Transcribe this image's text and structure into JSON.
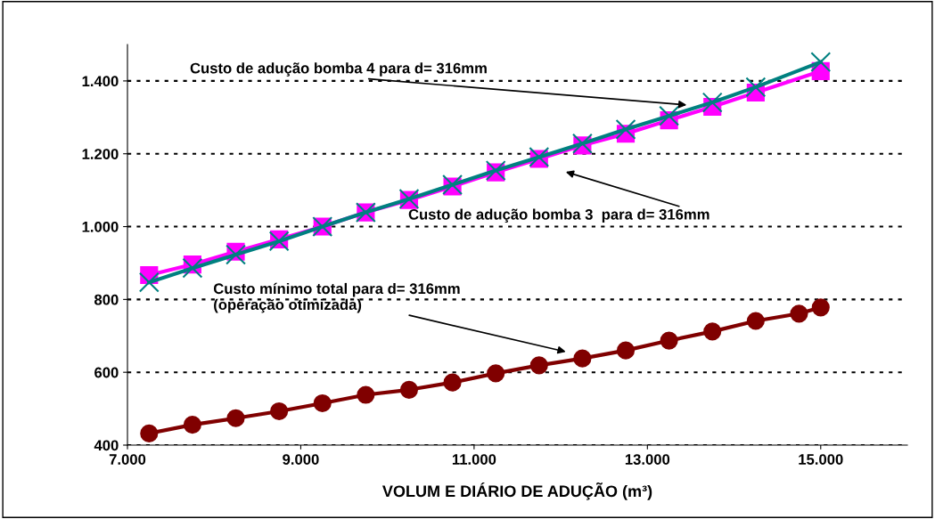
{
  "chart_data": {
    "type": "line",
    "xlabel": "VOLUM E DIÁRIO DE ADUÇÃO (m³)",
    "xlim": [
      7000,
      16000
    ],
    "xticks": [
      {
        "value": 7000,
        "label": "7.000"
      },
      {
        "value": 9000,
        "label": "9.000"
      },
      {
        "value": 11000,
        "label": "11.000"
      },
      {
        "value": 13000,
        "label": "13.000"
      },
      {
        "value": 15000,
        "label": "15.000"
      }
    ],
    "ylim": [
      400,
      1500
    ],
    "yticks": [
      {
        "value": 400,
        "label": "400"
      },
      {
        "value": 600,
        "label": "600"
      },
      {
        "value": 800,
        "label": "800"
      },
      {
        "value": 1000,
        "label": "1.000"
      },
      {
        "value": 1200,
        "label": "1.200"
      },
      {
        "value": 1400,
        "label": "1.400"
      }
    ],
    "grid": "y",
    "x": [
      7250,
      7750,
      8250,
      8750,
      9250,
      9750,
      10250,
      10750,
      11250,
      11750,
      12250,
      12750,
      13250,
      13750,
      14250,
      15000
    ],
    "series": [
      {
        "color": "#ff00ff",
        "marker": "square",
        "values": [
          867,
          896,
          931,
          965,
          1000,
          1039,
          1073,
          1110,
          1149,
          1186,
          1223,
          1255,
          1292,
          1329,
          1368,
          1427
        ]
      },
      {
        "color": "#008080",
        "marker": "cross",
        "values": [
          847,
          886,
          923,
          960,
          1000,
          1039,
          1076,
          1115,
          1154,
          1191,
          1228,
          1267,
          1304,
          1341,
          1383,
          1452
        ]
      },
      {
        "color": "#800000",
        "marker": "circle",
        "x": [
          7250,
          7750,
          8250,
          8750,
          9250,
          9750,
          10250,
          10750,
          11250,
          11750,
          12250,
          12750,
          13250,
          13750,
          14250,
          14750,
          15000
        ],
        "values": [
          432,
          456,
          474,
          493,
          515,
          538,
          552,
          572,
          597,
          619,
          638,
          660,
          687,
          712,
          741,
          761,
          778
        ]
      }
    ],
    "annotations": [
      "Custo de adução bomba 4 para d= 316mm",
      "Custo de adução bomba 3  para d= 316mm",
      "Custo mínimo total para d= 316mm\n(operação otimizada)"
    ]
  }
}
